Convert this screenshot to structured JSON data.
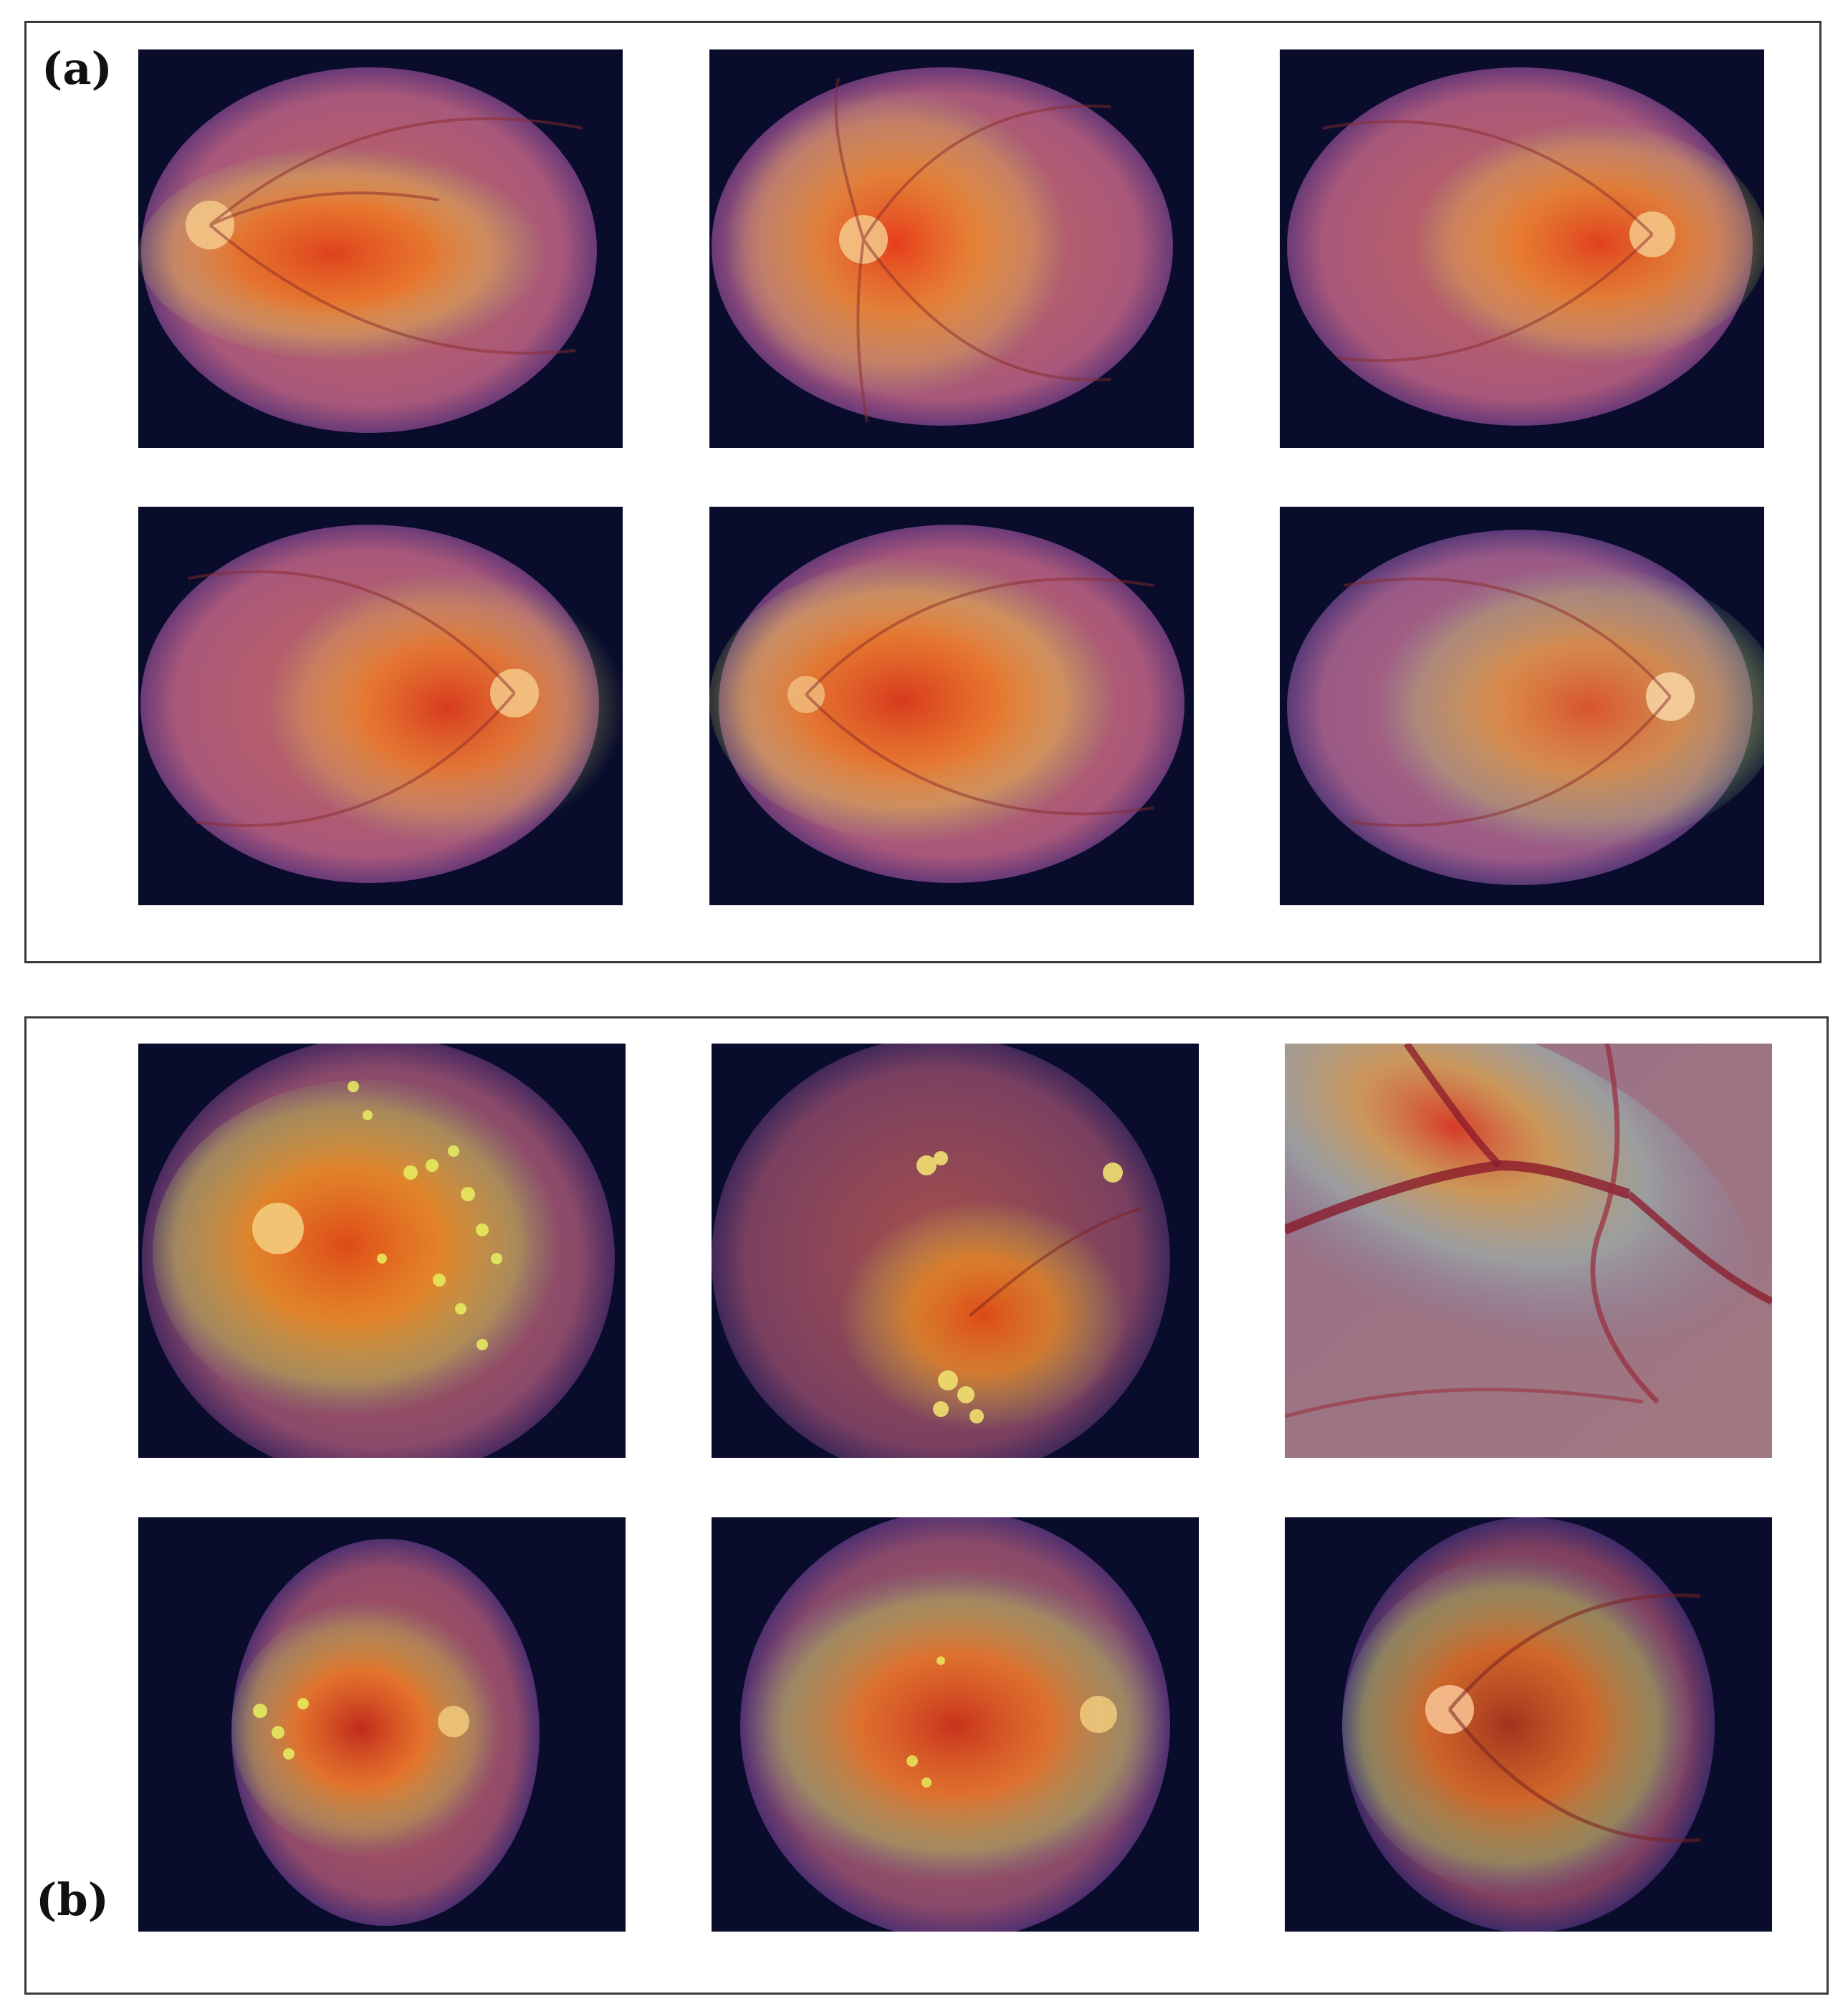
{
  "panels": {
    "a": {
      "label": "(a)",
      "images": [
        {
          "icon": "retina-heatmap-image"
        },
        {
          "icon": "retina-heatmap-image"
        },
        {
          "icon": "retina-heatmap-image"
        },
        {
          "icon": "retina-heatmap-image"
        },
        {
          "icon": "retina-heatmap-image"
        },
        {
          "icon": "retina-heatmap-image"
        }
      ]
    },
    "b": {
      "label": "(b)",
      "images": [
        {
          "icon": "retina-heatmap-image"
        },
        {
          "icon": "retina-heatmap-image"
        },
        {
          "icon": "retina-vessel-closeup-image"
        },
        {
          "icon": "retina-heatmap-image"
        },
        {
          "icon": "retina-heatmap-image"
        },
        {
          "icon": "retina-heatmap-image"
        }
      ]
    }
  },
  "colors": {
    "background": "#0a0c2c",
    "fundus_edge": "#9a4a7a",
    "heat_core": "#e84a1a",
    "heat_mid": "#f2a23a",
    "heat_outer": "#9ac86a"
  }
}
